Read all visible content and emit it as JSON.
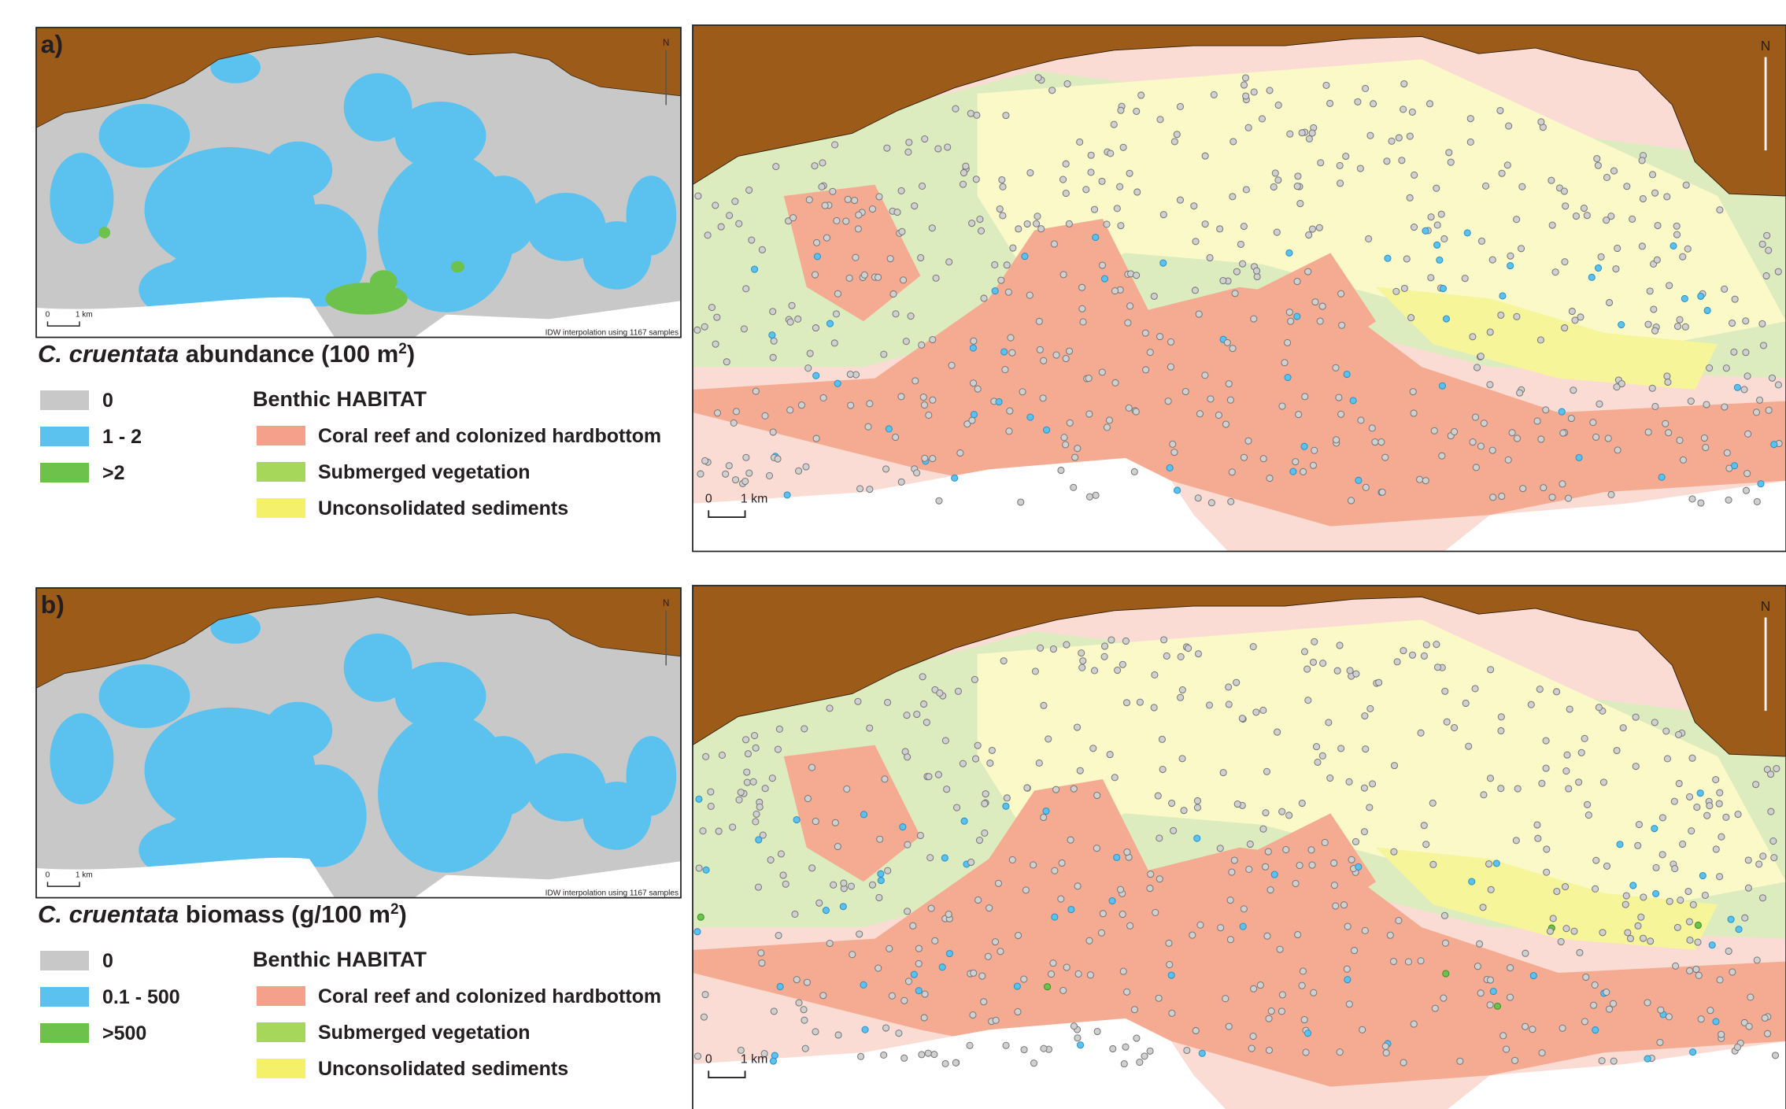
{
  "panels": [
    {
      "label": "a)",
      "north": "N",
      "small_scale": [
        "0",
        "1 km"
      ],
      "interpolation_note": "IDW interpolation using 1167 samples",
      "legend_title": {
        "species": "C. cruentata",
        "text": " abundance (100 m",
        "superscript": "2",
        "suffix": ")"
      },
      "classes": [
        "0",
        "1 - 2",
        ">2"
      ],
      "habitat_title": "Benthic HABITAT",
      "habitats": [
        "Coral reef and colonized hardbottom",
        "Submerged vegetation",
        "Unconsolidated sediments"
      ],
      "map_north": "N",
      "map_scale": [
        "0",
        "1 km"
      ]
    },
    {
      "label": "b)",
      "north": "N",
      "small_scale": [
        "0",
        "1 km"
      ],
      "interpolation_note": "IDW interpolation using 1167 samples",
      "legend_title": {
        "species": "C. cruentata",
        "text": " biomass (g/100 m",
        "superscript": "2",
        "suffix": ")"
      },
      "classes": [
        "0",
        "0.1 - 500",
        ">500"
      ],
      "habitat_title": "Benthic HABITAT",
      "habitats": [
        "Coral reef and colonized hardbottom",
        "Submerged vegetation",
        "Unconsolidated sediments"
      ],
      "map_north": "N",
      "map_scale": [
        "0",
        "1 km"
      ]
    }
  ]
}
